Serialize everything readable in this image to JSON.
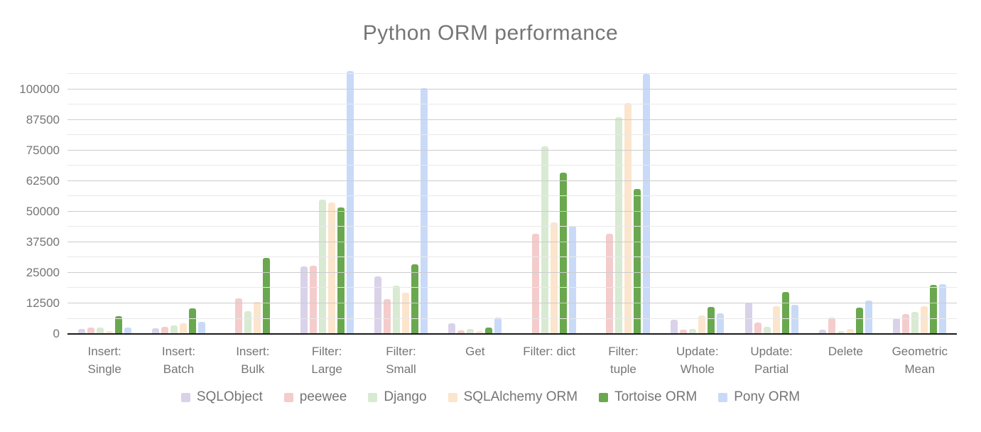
{
  "chart_data": {
    "type": "bar",
    "title": "Python ORM performance",
    "xlabel": "",
    "ylabel": "",
    "legend_position": "bottom",
    "grid": true,
    "ylim": [
      0,
      107500
    ],
    "ytick_values": [
      0,
      12500,
      25000,
      37500,
      50000,
      62500,
      75000,
      87500,
      100000
    ],
    "ytick_labels": [
      "0",
      "12500",
      "25000",
      "37500",
      "50000",
      "62500",
      "75000",
      "87500",
      "100000"
    ],
    "minor_gridline_values": [
      6250,
      18750,
      31250,
      43750,
      56250,
      68750,
      81250,
      93750,
      106250
    ],
    "categories": [
      "Insert:\nSingle",
      "Insert:\nBatch",
      "Insert:\nBulk",
      "Filter:\nLarge",
      "Filter:\nSmall",
      "Get",
      "Filter: dict",
      "Filter:\ntuple",
      "Update:\nWhole",
      "Update:\nPartial",
      "Delete",
      "Geometric\nMean"
    ],
    "series": [
      {
        "name": "SQLObject",
        "color": "#d9d2e9",
        "values": [
          1900,
          2400,
          0,
          27500,
          23500,
          4300,
          0,
          0,
          5800,
          12900,
          1700,
          6300
        ]
      },
      {
        "name": "peewee",
        "color": "#f4cccc",
        "values": [
          2500,
          2900,
          14400,
          28000,
          14300,
          1400,
          40900,
          41000,
          1700,
          4700,
          6800,
          8100
        ]
      },
      {
        "name": "Django",
        "color": "#d9ead3",
        "values": [
          2700,
          3400,
          9200,
          55000,
          19700,
          1900,
          76800,
          88700,
          1900,
          3000,
          1300,
          9000
        ]
      },
      {
        "name": "SQLAlchemy ORM",
        "color": "#fce5cd",
        "values": [
          1300,
          4400,
          13100,
          53800,
          16800,
          1100,
          45700,
          94300,
          7500,
          11300,
          2100,
          11300
        ]
      },
      {
        "name": "Tortoise ORM",
        "color": "#6aa84f",
        "values": [
          7300,
          10500,
          31200,
          51700,
          28600,
          2700,
          66100,
          59300,
          11100,
          17200,
          10800,
          20100
        ]
      },
      {
        "name": "Pony ORM",
        "color": "#c9daf8",
        "values": [
          2600,
          4900,
          0,
          107500,
          100500,
          6700,
          44100,
          106300,
          8500,
          11900,
          13800,
          20400
        ]
      }
    ]
  }
}
